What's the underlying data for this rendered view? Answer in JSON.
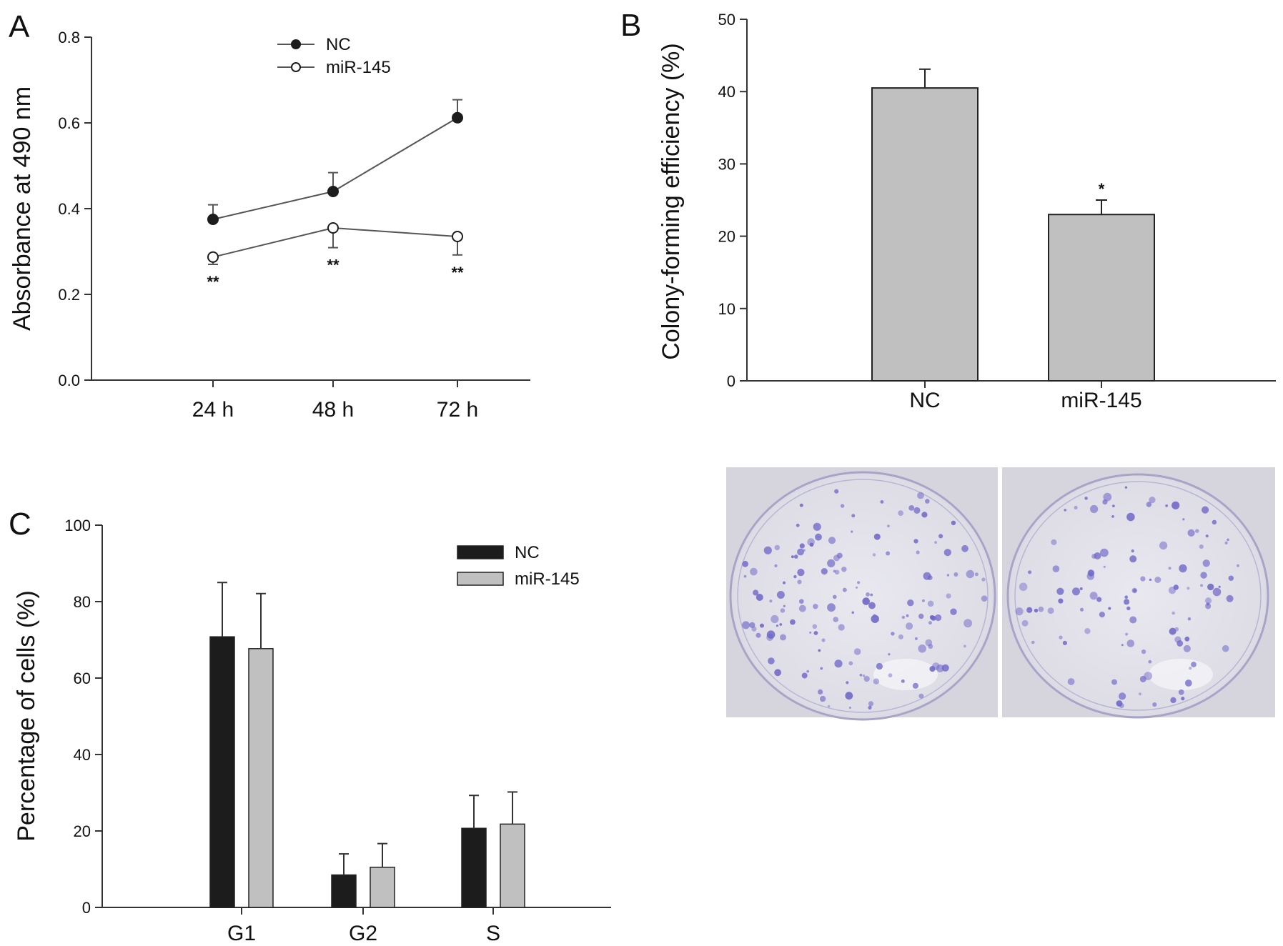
{
  "colors": {
    "nc_dark": "#1c1c1c",
    "mir_gray": "#c0c0c0",
    "axis": "#333333",
    "dish_stain": "#6e66c8"
  },
  "chart_data": [
    {
      "panel": "A",
      "type": "line",
      "ylabel": "Absorbance at 490 nm",
      "categories": [
        "24 h",
        "48 h",
        "72 h"
      ],
      "ylim": [
        0.0,
        0.8
      ],
      "yticks": [
        "0.0",
        "0.2",
        "0.4",
        "0.6",
        "0.8"
      ],
      "ytick_values": [
        0.0,
        0.2,
        0.4,
        0.6,
        0.8
      ],
      "legend_placement": "top-center",
      "series": [
        {
          "name": "NC",
          "marker": "filled-circle",
          "values": [
            0.375,
            0.44,
            0.612
          ],
          "errors": [
            0.034,
            0.044,
            0.042
          ]
        },
        {
          "name": "miR-145",
          "marker": "open-circle",
          "values": [
            0.287,
            0.355,
            0.335
          ],
          "errors": [
            0.017,
            0.046,
            0.043
          ]
        }
      ],
      "annotations": [
        "**",
        "**",
        "**"
      ]
    },
    {
      "panel": "B",
      "type": "bar",
      "ylabel": "Colony-forming efficiency (%)",
      "categories": [
        "NC",
        "miR-145"
      ],
      "values": [
        40.5,
        23.0
      ],
      "errors": [
        2.6,
        2.0
      ],
      "ylim": [
        0,
        50
      ],
      "yticks": [
        "0",
        "10",
        "20",
        "30",
        "40",
        "50"
      ],
      "ytick_values": [
        0,
        10,
        20,
        30,
        40,
        50
      ],
      "annotations": [
        "",
        "*"
      ]
    },
    {
      "panel": "C",
      "type": "bar",
      "ylabel": "Percentage of cells (%)",
      "categories": [
        "G1",
        "G2",
        "S"
      ],
      "ylim": [
        0,
        100
      ],
      "yticks": [
        "0",
        "20",
        "40",
        "60",
        "80",
        "100"
      ],
      "ytick_values": [
        0,
        20,
        40,
        60,
        80,
        100
      ],
      "legend_placement": "top-right",
      "series": [
        {
          "name": "NC",
          "values": [
            70.8,
            8.5,
            20.7
          ],
          "errors": [
            14.2,
            5.5,
            8.6
          ]
        },
        {
          "name": "miR-145",
          "values": [
            67.7,
            10.5,
            21.8
          ],
          "errors": [
            14.4,
            6.2,
            8.4
          ]
        }
      ]
    }
  ]
}
